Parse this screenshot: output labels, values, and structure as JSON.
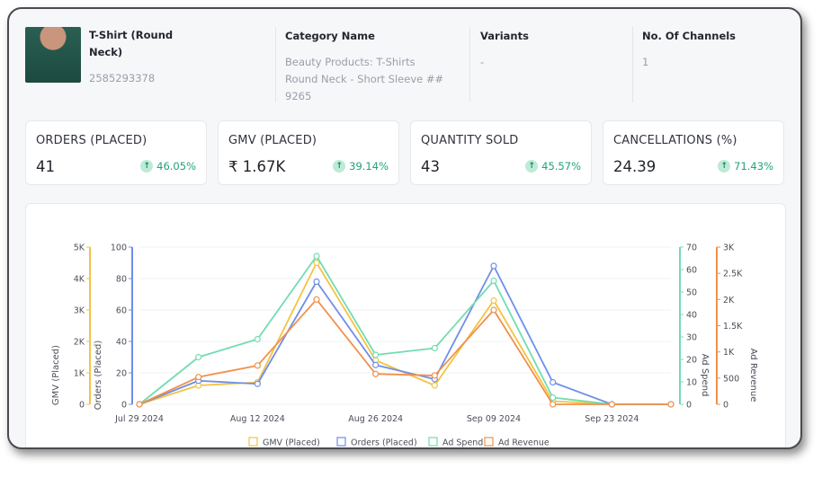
{
  "product": {
    "name": "T-Shirt (Round Neck)",
    "id": "2585293378",
    "category_heading": "Category Name",
    "category_lines": [
      "Beauty Products: T-Shirts",
      "Round Neck - Short Sleeve ##",
      "9265"
    ],
    "variants_heading": "Variants",
    "variants_value": "-",
    "channels_heading": "No. Of Channels",
    "channels_value": "1"
  },
  "kpis": [
    {
      "label": "ORDERS (PLACED)",
      "value": "41",
      "change": "46.05%"
    },
    {
      "label": "GMV (PLACED)",
      "value": "₹ 1.67K",
      "change": "39.14%"
    },
    {
      "label": "QUANTITY SOLD",
      "value": "43",
      "change": "45.57%"
    },
    {
      "label": "CANCELLATIONS (%)",
      "value": "24.39",
      "change": "71.43%"
    }
  ],
  "colors": {
    "gmv": "#f5c342",
    "orders": "#6f8ee8",
    "ad_spend": "#72dcb0",
    "ad_revenue": "#f0914b",
    "positive": "#1fa37a"
  },
  "chart_data": {
    "type": "line",
    "x": [
      "Jul 29 2024",
      "Aug 05 2024",
      "Aug 12 2024",
      "Aug 19 2024",
      "Aug 26 2024",
      "Sep 02 2024",
      "Sep 09 2024",
      "Sep 16 2024",
      "Sep 23 2024",
      "Sep 30 2024"
    ],
    "x_tick_labels": [
      "Jul 29 2024",
      "Aug 12 2024",
      "Aug 26 2024",
      "Sep 09 2024",
      "Sep 23 2024"
    ],
    "axes": {
      "gmv": {
        "label": "GMV (Placed)",
        "ticks": [
          "0",
          "1K",
          "2K",
          "3K",
          "4K",
          "5K"
        ],
        "range": [
          0,
          5000
        ]
      },
      "orders": {
        "label": "Orders (Placed)",
        "ticks": [
          "0",
          "20",
          "40",
          "60",
          "80",
          "100"
        ],
        "range": [
          0,
          100
        ]
      },
      "ad_spend": {
        "label": "Ad Spend",
        "ticks": [
          "0",
          "10",
          "20",
          "30",
          "40",
          "50",
          "60",
          "70"
        ],
        "range": [
          0,
          70
        ]
      },
      "ad_revenue": {
        "label": "Ad Revenue",
        "ticks": [
          "0",
          "500",
          "1K",
          "1.5K",
          "2K",
          "2.5K",
          "3K"
        ],
        "range": [
          0,
          3000
        ]
      }
    },
    "series": [
      {
        "name": "GMV (Placed)",
        "key": "gmv",
        "axis": "gmv",
        "values": [
          0,
          600,
          700,
          4500,
          1400,
          600,
          3300,
          100,
          0,
          0
        ]
      },
      {
        "name": "Orders (Placed)",
        "key": "orders",
        "axis": "orders",
        "values": [
          0,
          15,
          13,
          78,
          25,
          16,
          88,
          14,
          0,
          0
        ]
      },
      {
        "name": "Ad Spend",
        "key": "ad_spend",
        "axis": "ad_spend",
        "values": [
          0,
          21,
          29,
          66,
          22,
          25,
          55,
          3,
          0,
          0
        ]
      },
      {
        "name": "Ad Revenue",
        "key": "ad_revenue",
        "axis": "ad_revenue",
        "values": [
          0,
          520,
          740,
          2000,
          580,
          550,
          1800,
          0,
          0,
          0
        ]
      }
    ],
    "legend_position": "bottom"
  }
}
